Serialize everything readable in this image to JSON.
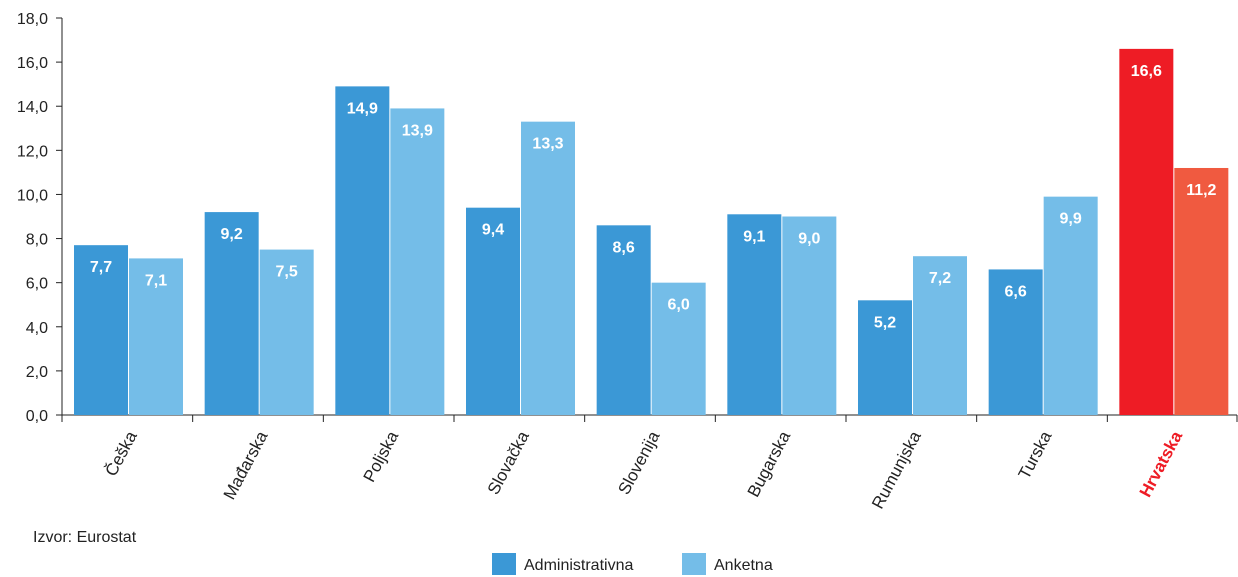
{
  "chart_data": {
    "type": "bar",
    "categories": [
      "Češka",
      "Mađarska",
      "Poljska",
      "Slovačka",
      "Slovenija",
      "Bugarska",
      "Rumunjska",
      "Turska",
      "Hrvatska"
    ],
    "highlight_category": "Hrvatska",
    "series": [
      {
        "name": "Administrativna",
        "values": [
          7.7,
          9.2,
          14.9,
          9.4,
          8.6,
          9.1,
          5.2,
          6.6,
          16.6
        ],
        "labels": [
          "7,7",
          "9,2",
          "14,9",
          "9,4",
          "8,6",
          "9,1",
          "5,2",
          "6,6",
          "16,6"
        ],
        "color": "#3b98d6",
        "highlight_color": "#ee1c25"
      },
      {
        "name": "Anketna",
        "values": [
          7.1,
          7.5,
          13.9,
          13.3,
          6.0,
          9.0,
          7.2,
          9.9,
          11.2
        ],
        "labels": [
          "7,1",
          "7,5",
          "13,9",
          "13,3",
          "6,0",
          "9,0",
          "7,2",
          "9,9",
          "11,2"
        ],
        "color": "#74bde8",
        "highlight_color": "#f05a40"
      }
    ],
    "y_ticks": [
      "0,0",
      "2,0",
      "4,0",
      "6,0",
      "8,0",
      "10,0",
      "12,0",
      "14,0",
      "16,0",
      "18,0"
    ],
    "ylim": [
      0,
      18
    ],
    "title": "",
    "xlabel": "",
    "ylabel": "",
    "grid": false,
    "legend_position": "bottom-center"
  },
  "source": "Izvor: Eurostat",
  "colors": {
    "axis": "#222222",
    "highlight_label": "#ee1c25"
  }
}
